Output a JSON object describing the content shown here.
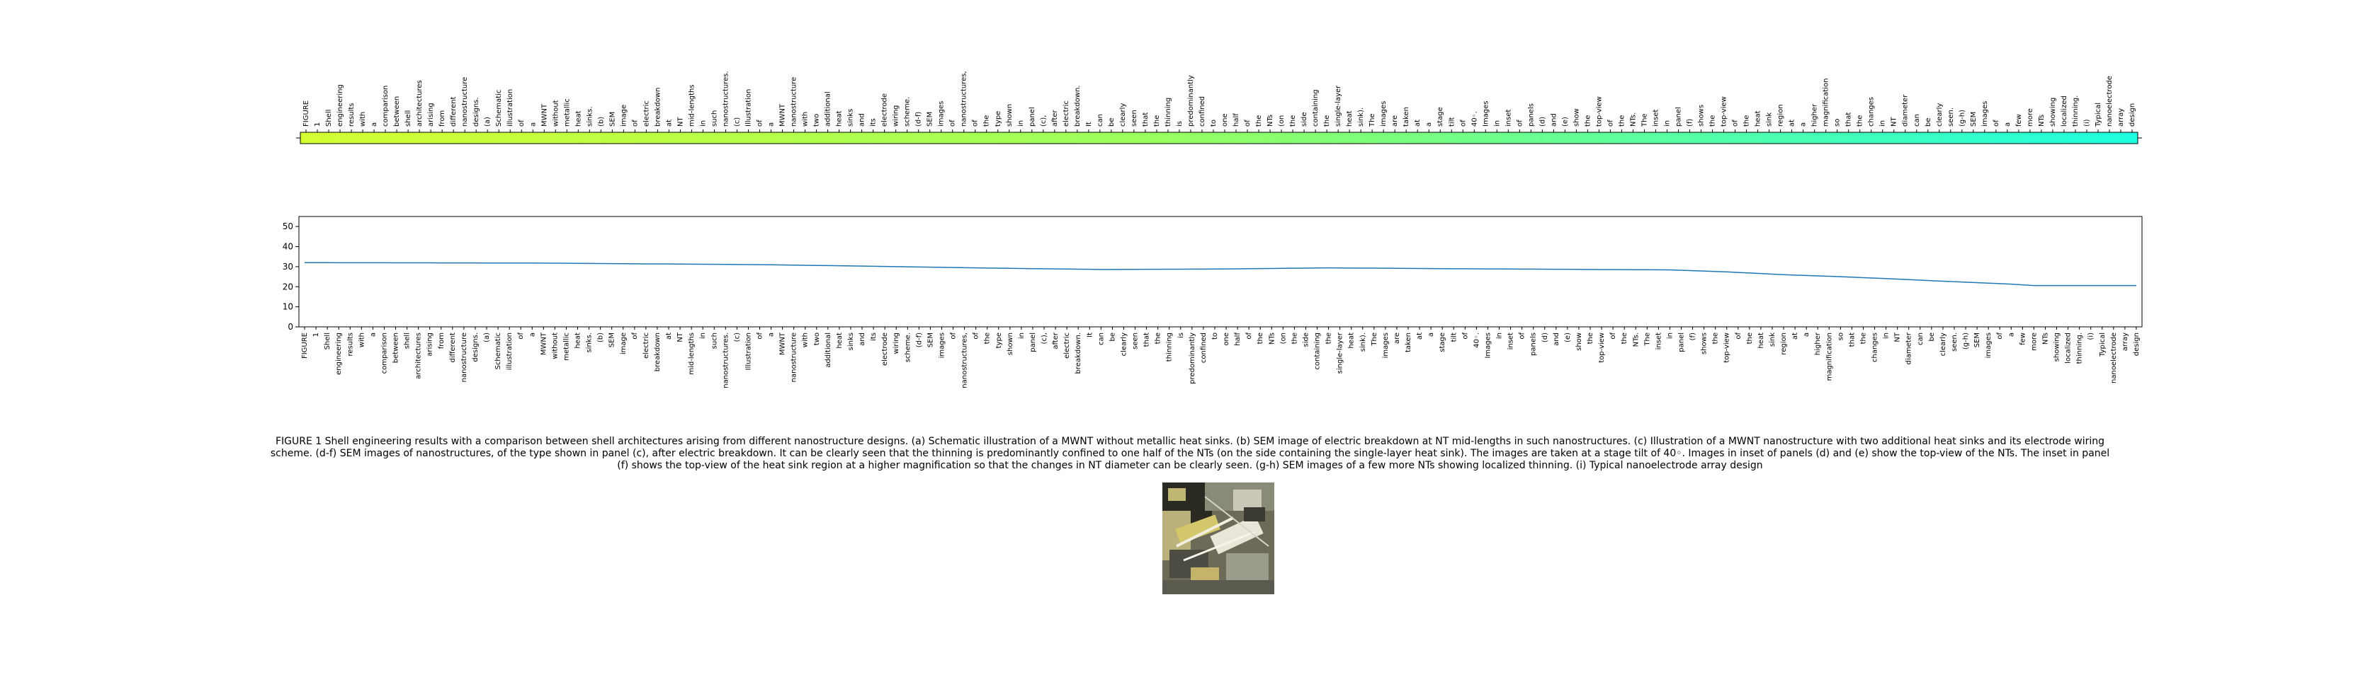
{
  "caption": "FIGURE 1 Shell engineering results with a comparison between shell architectures arising from different nanostructure designs. (a) Schematic illustration of a MWNT without metallic heat sinks. (b) SEM image of electric breakdown at NT mid-lengths in such nanostructures. (c) Illustration of a MWNT nanostructure with two additional heat sinks and its electrode wiring scheme. (d-f) SEM images of nanostructures, of the type shown in panel (c), after electric breakdown. It can be clearly seen that the thinning is predominantly confined to one half of the NTs (on the side containing the single-layer heat sink). The images are taken at a stage tilt of 40◦. Images in inset of panels (d) and (e) show the top-view of the NTs. The inset in panel (f) shows the top-view of the heat sink region at a higher magnification so that the changes in NT diameter can be clearly seen. (g-h) SEM images of a few more NTs showing localized thinning. (i) Typical nanoelectrode array design",
  "colors": {
    "line": "#1f77b4",
    "strip_start": "#d4ff33",
    "strip_mid": "#9cff5c",
    "strip_end": "#1effe0"
  },
  "chart_data": [
    {
      "type": "heatmap",
      "categories": [
        "FIGURE",
        "1",
        "Shell",
        "engineering",
        "results",
        "with",
        "a",
        "comparison",
        "between",
        "shell",
        "architectures",
        "arising",
        "from",
        "different",
        "nanostructure",
        "designs.",
        "(a)",
        "Schematic",
        "illustration",
        "of",
        "a",
        "MWNT",
        "without",
        "metallic",
        "heat",
        "sinks.",
        "(b)",
        "SEM",
        "image",
        "of",
        "electric",
        "breakdown",
        "at",
        "NT",
        "mid-lengths",
        "in",
        "such",
        "nanostructures.",
        "(c)",
        "Illustration",
        "of",
        "a",
        "MWNT",
        "nanostructure",
        "with",
        "two",
        "additional",
        "heat",
        "sinks",
        "and",
        "its",
        "electrode",
        "wiring",
        "scheme.",
        "(d-f)",
        "SEM",
        "images",
        "of",
        "nanostructures,",
        "of",
        "the",
        "type",
        "shown",
        "in",
        "panel",
        "(c),",
        "after",
        "electric",
        "breakdown.",
        "It",
        "can",
        "be",
        "clearly",
        "seen",
        "that",
        "the",
        "thinning",
        "is",
        "predominantly",
        "confined",
        "to",
        "one",
        "half",
        "of",
        "the",
        "NTs",
        "(on",
        "the",
        "side",
        "containing",
        "the",
        "single-layer",
        "heat",
        "sink).",
        "The",
        "images",
        "are",
        "taken",
        "at",
        "a",
        "stage",
        "tilt",
        "of",
        "40◦.",
        "Images",
        "in",
        "inset",
        "of",
        "panels",
        "(d)",
        "and",
        "(e)",
        "show",
        "the",
        "top-view",
        "of",
        "the",
        "NTs.",
        "The",
        "inset",
        "in",
        "panel",
        "(f)",
        "shows",
        "the",
        "top-view",
        "of",
        "the",
        "heat",
        "sink",
        "region",
        "at",
        "a",
        "higher",
        "magnification",
        "so",
        "that",
        "the",
        "changes",
        "in",
        "NT",
        "diameter",
        "can",
        "be",
        "clearly",
        "seen.",
        "(g-h)",
        "SEM",
        "images",
        "of",
        "a",
        "few",
        "more",
        "NTs",
        "showing",
        "localized",
        "thinning.",
        "(i)",
        "Typical",
        "nanoelectrode",
        "array",
        "design"
      ],
      "grid": false,
      "legend": "none"
    },
    {
      "type": "line",
      "categories": [
        "FIGURE",
        "1",
        "Shell",
        "engineering",
        "results",
        "with",
        "a",
        "comparison",
        "between",
        "shell",
        "architectures",
        "arising",
        "from",
        "different",
        "nanostructure",
        "designs.",
        "(a)",
        "Schematic",
        "illustration",
        "of",
        "a",
        "MWNT",
        "without",
        "metallic",
        "heat",
        "sinks.",
        "(b)",
        "SEM",
        "image",
        "of",
        "electric",
        "breakdown",
        "at",
        "NT",
        "mid-lengths",
        "in",
        "such",
        "nanostructures.",
        "(c)",
        "Illustration",
        "of",
        "a",
        "MWNT",
        "nanostructure",
        "with",
        "two",
        "additional",
        "heat",
        "sinks",
        "and",
        "its",
        "electrode",
        "wiring",
        "scheme.",
        "(d-f)",
        "SEM",
        "images",
        "of",
        "nanostructures,",
        "of",
        "the",
        "type",
        "shown",
        "in",
        "panel",
        "(c),",
        "after",
        "electric",
        "breakdown.",
        "It",
        "can",
        "be",
        "clearly",
        "seen",
        "that",
        "the",
        "thinning",
        "is",
        "predominantly",
        "confined",
        "to",
        "one",
        "half",
        "of",
        "the",
        "NTs",
        "(on",
        "the",
        "side",
        "containing",
        "the",
        "single-layer",
        "heat",
        "sink).",
        "The",
        "images",
        "are",
        "taken",
        "at",
        "a",
        "stage",
        "tilt",
        "of",
        "40◦.",
        "Images",
        "in",
        "inset",
        "of",
        "panels",
        "(d)",
        "and",
        "(e)",
        "show",
        "the",
        "top-view",
        "of",
        "the",
        "NTs.",
        "The",
        "inset",
        "in",
        "panel",
        "(f)",
        "shows",
        "the",
        "top-view",
        "of",
        "the",
        "heat",
        "sink",
        "region",
        "at",
        "a",
        "higher",
        "magnification",
        "so",
        "that",
        "the",
        "changes",
        "in",
        "NT",
        "diameter",
        "can",
        "be",
        "clearly",
        "seen.",
        "(g-h)",
        "SEM",
        "images",
        "of",
        "a",
        "few",
        "more",
        "NTs",
        "showing",
        "localized",
        "thinning.",
        "(i)",
        "Typical",
        "nanoelectrode",
        "array",
        "design"
      ],
      "keypoints": [
        [
          0,
          32
        ],
        [
          20,
          31.8
        ],
        [
          40,
          31
        ],
        [
          50,
          30.2
        ],
        [
          60,
          29.3
        ],
        [
          70,
          28.6
        ],
        [
          80,
          28.8
        ],
        [
          90,
          29.4
        ],
        [
          100,
          29
        ],
        [
          110,
          28.7
        ],
        [
          120,
          28.4
        ],
        [
          125,
          27.4
        ],
        [
          130,
          26
        ],
        [
          135,
          25
        ],
        [
          140,
          23.8
        ],
        [
          145,
          22.5
        ],
        [
          150,
          21.3
        ],
        [
          152,
          20.6
        ]
      ],
      "y_ticks": [
        0,
        10,
        20,
        30,
        40,
        50
      ],
      "ylim": [
        0,
        55
      ],
      "title": "",
      "xlabel": "",
      "ylabel": "",
      "grid": false,
      "legend": "none"
    }
  ]
}
